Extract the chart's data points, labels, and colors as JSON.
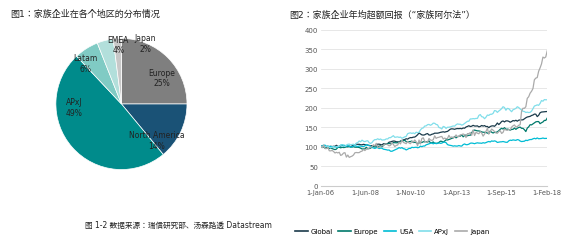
{
  "fig1_title": "图1：家族企业在各个地区的分布情况",
  "pie_labels": [
    "Europe",
    "North America",
    "APxJ",
    "Latam",
    "EMEA",
    "Japan"
  ],
  "pie_values": [
    25,
    14,
    49,
    6,
    4,
    2
  ],
  "pie_colors": [
    "#7f7f7f",
    "#1a5276",
    "#008b8b",
    "#80cbc4",
    "#b2dfdb",
    "#c8c8c8"
  ],
  "fig2_title": "图2：家族企业年均超额回报（“家族阿尔法”）",
  "line_colors": {
    "Global": "#1a3a4a",
    "Europe": "#00796b",
    "USA": "#00bcd4",
    "APxJ": "#80deea",
    "Japan": "#aaaaaa"
  },
  "legend_labels": [
    "Global",
    "Europe",
    "USA",
    "APxJ",
    "Japan"
  ],
  "x_tick_labels": [
    "1-Jan-06",
    "1-Jun-08",
    "1-Nov-10",
    "1-Apr-13",
    "1-Sep-15",
    "1-Feb-18"
  ],
  "y_ticks": [
    0,
    50,
    100,
    150,
    200,
    250,
    300,
    350,
    400
  ],
  "source_text": "图 1-2 数据来源：瑞信研究部、汤森路透 Datastream",
  "background_color": "#ffffff"
}
